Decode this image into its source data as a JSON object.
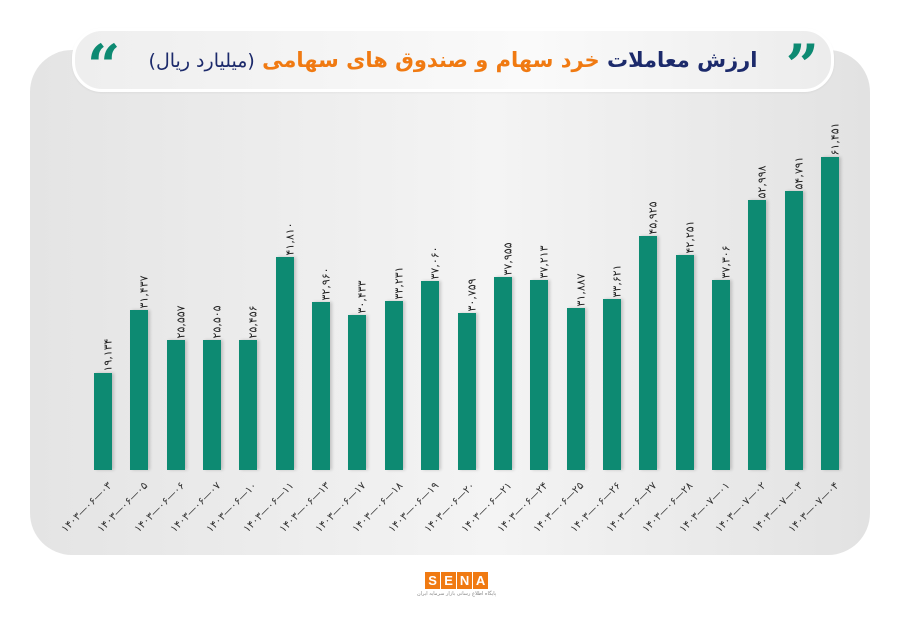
{
  "title": {
    "part1": "ارزش معاملات",
    "part2": "خرد سهام و صندوق های سهامی",
    "part3": "(میلیارد ریال)",
    "open_quote": "”",
    "close_quote": "“"
  },
  "colors": {
    "bar": "#0d8a72",
    "title_dark": "#1c2a6b",
    "title_accent": "#f07a12",
    "quote": "#0d8a72"
  },
  "logo": {
    "letters": [
      "S",
      "E",
      "N",
      "A"
    ],
    "subtitle": "پایگاه اطلاع رسانی بازار سرمایه ایران"
  },
  "chart_data": {
    "type": "bar",
    "title": "ارزش معاملات خرد سهام و صندوق های سهامی (میلیارد ریال)",
    "xlabel": "",
    "ylabel": "میلیارد ریال",
    "grid": false,
    "legend": null,
    "ylim": [
      0,
      62000
    ],
    "categories": [
      "۱۴۰۳-۰۶-۰۳",
      "۱۴۰۳-۰۶-۰۵",
      "۱۴۰۳-۰۶-۰۶",
      "۱۴۰۳-۰۶-۰۷",
      "۱۴۰۳-۰۶-۱۰",
      "۱۴۰۳-۰۶-۱۱",
      "۱۴۰۳-۰۶-۱۳",
      "۱۴۰۳-۰۶-۱۷",
      "۱۴۰۳-۰۶-۱۸",
      "۱۴۰۳-۰۶-۱۹",
      "۱۴۰۳-۰۶-۲۰",
      "۱۴۰۳-۰۶-۲۱",
      "۱۴۰۳-۰۶-۲۴",
      "۱۴۰۳-۰۶-۲۵",
      "۱۴۰۳-۰۶-۲۶",
      "۱۴۰۳-۰۶-۲۷",
      "۱۴۰۳-۰۶-۲۸",
      "۱۴۰۳-۰۷-۰۱",
      "۱۴۰۳-۰۷-۰۲",
      "۱۴۰۳-۰۷-۰۳",
      "۱۴۰۳-۰۷-۰۴"
    ],
    "categories_latin": [
      "1403-06-03",
      "1403-06-05",
      "1403-06-06",
      "1403-06-07",
      "1403-06-10",
      "1403-06-11",
      "1403-06-13",
      "1403-06-17",
      "1403-06-18",
      "1403-06-19",
      "1403-06-20",
      "1403-06-21",
      "1403-06-24",
      "1403-06-25",
      "1403-06-26",
      "1403-06-27",
      "1403-06-28",
      "1403-07-01",
      "1403-07-02",
      "1403-07-03",
      "1403-07-04"
    ],
    "values": [
      19134,
      31437,
      25557,
      25505,
      25456,
      41810,
      32960,
      30433,
      33231,
      37060,
      30759,
      37955,
      37213,
      31887,
      33621,
      45925,
      42251,
      37306,
      52998,
      54791,
      61451
    ],
    "value_labels": [
      "۱۹,۱۳۴",
      "۳۱,۴۳۷",
      "۲۵,۵۵۷",
      "۲۵,۵۰۵",
      "۲۵,۴۵۶",
      "۴۱,۸۱۰",
      "۳۲,۹۶۰",
      "۳۰,۴۳۳",
      "۳۳,۲۳۱",
      "۳۷,۰۶۰",
      "۳۰,۷۵۹",
      "۳۷,۹۵۵",
      "۳۷,۲۱۳",
      "۳۱,۸۸۷",
      "۳۳,۶۲۱",
      "۴۵,۹۲۵",
      "۴۲,۲۵۱",
      "۳۷,۳۰۶",
      "۵۲,۹۹۸",
      "۵۴,۷۹۱",
      "۶۱,۴۵۱"
    ]
  }
}
